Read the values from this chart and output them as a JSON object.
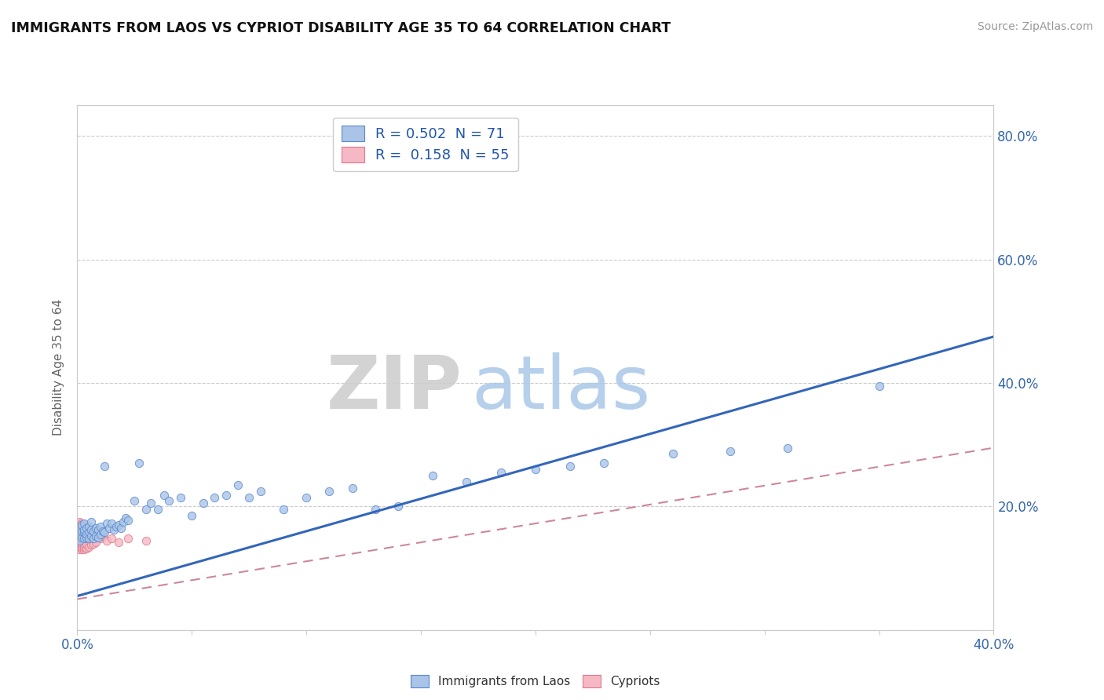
{
  "title": "IMMIGRANTS FROM LAOS VS CYPRIOT DISABILITY AGE 35 TO 64 CORRELATION CHART",
  "source": "Source: ZipAtlas.com",
  "ylabel": "Disability Age 35 to 64",
  "xlim": [
    0.0,
    0.4
  ],
  "ylim": [
    0.0,
    0.85
  ],
  "blue_R": 0.502,
  "blue_N": 71,
  "pink_R": 0.158,
  "pink_N": 55,
  "blue_color": "#aac4e8",
  "pink_color": "#f5b8c4",
  "blue_edge_color": "#5588cc",
  "pink_edge_color": "#e07888",
  "blue_line_color": "#3366bb",
  "pink_line_color": "#cc8899",
  "watermark_color": "#d8e4f0",
  "blue_line_y0": 0.055,
  "blue_line_y1": 0.475,
  "pink_line_y0": 0.05,
  "pink_line_y1": 0.295,
  "blue_scatter_x": [
    0.001,
    0.001,
    0.001,
    0.002,
    0.002,
    0.002,
    0.003,
    0.003,
    0.003,
    0.003,
    0.004,
    0.004,
    0.004,
    0.005,
    0.005,
    0.005,
    0.006,
    0.006,
    0.006,
    0.007,
    0.007,
    0.008,
    0.008,
    0.009,
    0.009,
    0.01,
    0.01,
    0.011,
    0.012,
    0.012,
    0.013,
    0.014,
    0.015,
    0.016,
    0.017,
    0.018,
    0.019,
    0.02,
    0.021,
    0.022,
    0.025,
    0.027,
    0.03,
    0.032,
    0.035,
    0.038,
    0.04,
    0.045,
    0.05,
    0.055,
    0.06,
    0.065,
    0.07,
    0.075,
    0.08,
    0.09,
    0.1,
    0.11,
    0.12,
    0.13,
    0.14,
    0.155,
    0.17,
    0.185,
    0.2,
    0.215,
    0.23,
    0.26,
    0.285,
    0.31,
    0.35
  ],
  "blue_scatter_y": [
    0.145,
    0.165,
    0.155,
    0.15,
    0.16,
    0.17,
    0.148,
    0.158,
    0.162,
    0.172,
    0.15,
    0.155,
    0.165,
    0.148,
    0.158,
    0.168,
    0.152,
    0.162,
    0.175,
    0.148,
    0.16,
    0.152,
    0.165,
    0.15,
    0.162,
    0.155,
    0.168,
    0.16,
    0.158,
    0.265,
    0.172,
    0.165,
    0.172,
    0.162,
    0.168,
    0.17,
    0.165,
    0.175,
    0.182,
    0.178,
    0.21,
    0.27,
    0.195,
    0.205,
    0.195,
    0.218,
    0.21,
    0.215,
    0.185,
    0.205,
    0.215,
    0.218,
    0.235,
    0.215,
    0.225,
    0.195,
    0.215,
    0.225,
    0.23,
    0.195,
    0.2,
    0.25,
    0.24,
    0.255,
    0.26,
    0.265,
    0.27,
    0.285,
    0.29,
    0.295,
    0.395
  ],
  "pink_scatter_x": [
    0.001,
    0.001,
    0.001,
    0.001,
    0.001,
    0.001,
    0.001,
    0.001,
    0.001,
    0.001,
    0.001,
    0.001,
    0.001,
    0.001,
    0.001,
    0.001,
    0.001,
    0.001,
    0.001,
    0.001,
    0.002,
    0.002,
    0.002,
    0.002,
    0.002,
    0.002,
    0.002,
    0.002,
    0.002,
    0.002,
    0.003,
    0.003,
    0.003,
    0.003,
    0.003,
    0.003,
    0.004,
    0.004,
    0.004,
    0.004,
    0.005,
    0.005,
    0.006,
    0.006,
    0.007,
    0.007,
    0.008,
    0.008,
    0.01,
    0.011,
    0.013,
    0.015,
    0.018,
    0.022,
    0.03
  ],
  "pink_scatter_y": [
    0.13,
    0.135,
    0.14,
    0.145,
    0.15,
    0.152,
    0.155,
    0.158,
    0.16,
    0.162,
    0.165,
    0.168,
    0.17,
    0.172,
    0.175,
    0.14,
    0.145,
    0.15,
    0.155,
    0.16,
    0.13,
    0.135,
    0.14,
    0.145,
    0.15,
    0.155,
    0.16,
    0.165,
    0.168,
    0.172,
    0.13,
    0.135,
    0.14,
    0.148,
    0.155,
    0.162,
    0.132,
    0.14,
    0.148,
    0.165,
    0.135,
    0.15,
    0.138,
    0.152,
    0.14,
    0.155,
    0.142,
    0.158,
    0.148,
    0.152,
    0.145,
    0.148,
    0.142,
    0.148,
    0.145
  ]
}
